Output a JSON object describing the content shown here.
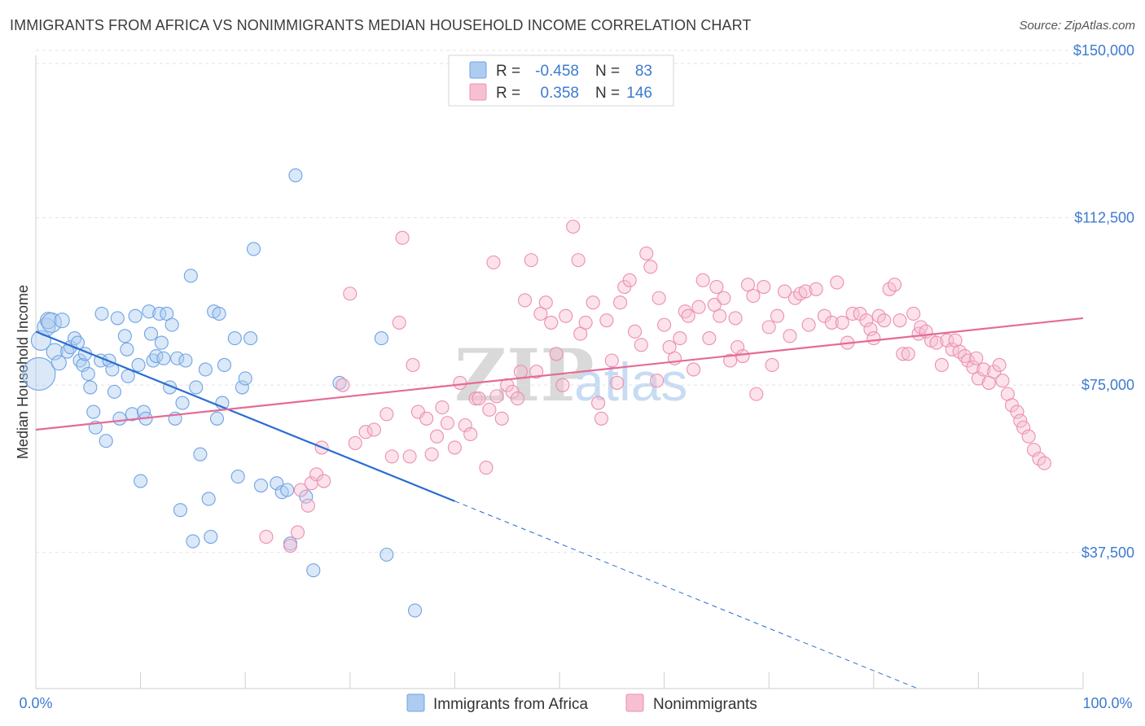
{
  "title": "IMMIGRANTS FROM AFRICA VS NONIMMIGRANTS MEDIAN HOUSEHOLD INCOME CORRELATION CHART",
  "source": "Source: ZipAtlas.com",
  "watermark": {
    "zip": "ZIP",
    "atlas": "atlas"
  },
  "chart_data": {
    "type": "scatter",
    "ylabel": "Median Household Income",
    "xlabel": "",
    "xlim": [
      0,
      100
    ],
    "ylim": [
      7000,
      154000
    ],
    "x_tick_labels": {
      "left": "0.0%",
      "right": "100.0%"
    },
    "y_ticks": [
      {
        "value": 37500,
        "label": "$37,500"
      },
      {
        "value": 75000,
        "label": "$75,000"
      },
      {
        "value": 112500,
        "label": "$112,500"
      },
      {
        "value": 150000,
        "label": "$150,000"
      }
    ],
    "grid": "horizontal dashed",
    "legend_position": "top-center",
    "stats": [
      {
        "r_label": "R =",
        "r": "-0.458",
        "n_label": "N =",
        "n": "83"
      },
      {
        "r_label": "R =",
        "r": "0.358",
        "n_label": "N =",
        "n": "146"
      }
    ],
    "series": [
      {
        "name": "Immigrants from Africa",
        "color": "#6fa3e4",
        "fill": "#aecbf0",
        "line_color": "#2a6dd0",
        "trend": {
          "x0": 0,
          "y0": 87000,
          "x1": 40,
          "y1": 49000,
          "dash_to_x": 100,
          "dash_to_y": -8000
        },
        "points": [
          [
            0.3,
            77500,
            20
          ],
          [
            0.5,
            85000,
            12
          ],
          [
            1.0,
            88000,
            11
          ],
          [
            1.2,
            89500,
            10
          ],
          [
            1.5,
            89000,
            12
          ],
          [
            1.8,
            82500,
            10
          ],
          [
            2.2,
            80000,
            9
          ],
          [
            2.5,
            89500,
            9
          ],
          [
            3.0,
            82500,
            8
          ],
          [
            3.3,
            83500,
            8
          ],
          [
            3.7,
            85500,
            8
          ],
          [
            4.0,
            84500,
            8
          ],
          [
            4.2,
            80500,
            8
          ],
          [
            4.5,
            79500,
            8
          ],
          [
            4.7,
            82000,
            8
          ],
          [
            5.0,
            77500,
            8
          ],
          [
            5.2,
            74500,
            8
          ],
          [
            5.5,
            69000,
            8
          ],
          [
            5.7,
            65500,
            8
          ],
          [
            6.2,
            80500,
            8
          ],
          [
            6.3,
            91000,
            8
          ],
          [
            6.7,
            62500,
            8
          ],
          [
            7.0,
            80500,
            8
          ],
          [
            7.3,
            78500,
            8
          ],
          [
            7.5,
            73500,
            8
          ],
          [
            7.8,
            90000,
            8
          ],
          [
            8.0,
            67500,
            8
          ],
          [
            8.5,
            86000,
            8
          ],
          [
            8.7,
            83000,
            8
          ],
          [
            8.8,
            77000,
            8
          ],
          [
            9.2,
            68500,
            8
          ],
          [
            9.5,
            90500,
            8
          ],
          [
            9.8,
            79500,
            8
          ],
          [
            10.0,
            53500,
            8
          ],
          [
            10.3,
            69000,
            8
          ],
          [
            10.5,
            67500,
            8
          ],
          [
            10.8,
            91500,
            8
          ],
          [
            11.0,
            86500,
            8
          ],
          [
            11.2,
            80500,
            8
          ],
          [
            11.5,
            81500,
            8
          ],
          [
            11.8,
            91000,
            8
          ],
          [
            12.0,
            84500,
            8
          ],
          [
            12.2,
            81000,
            8
          ],
          [
            12.5,
            91000,
            8
          ],
          [
            12.8,
            74500,
            8
          ],
          [
            13.0,
            88500,
            8
          ],
          [
            13.3,
            67500,
            8
          ],
          [
            13.5,
            81000,
            8
          ],
          [
            13.8,
            47000,
            8
          ],
          [
            14.0,
            71000,
            8
          ],
          [
            14.3,
            80500,
            8
          ],
          [
            14.8,
            99500,
            8
          ],
          [
            15.0,
            40000,
            8
          ],
          [
            15.3,
            74500,
            8
          ],
          [
            15.7,
            59500,
            8
          ],
          [
            16.2,
            78500,
            8
          ],
          [
            16.5,
            49500,
            8
          ],
          [
            16.7,
            41000,
            8
          ],
          [
            17.0,
            91500,
            8
          ],
          [
            17.3,
            67500,
            8
          ],
          [
            17.5,
            91000,
            8
          ],
          [
            17.8,
            71000,
            8
          ],
          [
            18.0,
            79500,
            8
          ],
          [
            19.0,
            85500,
            8
          ],
          [
            19.3,
            54500,
            8
          ],
          [
            19.7,
            74500,
            8
          ],
          [
            20.0,
            76500,
            8
          ],
          [
            20.5,
            85500,
            8
          ],
          [
            20.8,
            105500,
            8
          ],
          [
            21.5,
            52500,
            8
          ],
          [
            23.0,
            53000,
            8
          ],
          [
            23.5,
            51000,
            8
          ],
          [
            24.0,
            51500,
            8
          ],
          [
            24.3,
            39500,
            8
          ],
          [
            24.8,
            122000,
            8
          ],
          [
            25.8,
            50000,
            8
          ],
          [
            26.5,
            33500,
            8
          ],
          [
            29.0,
            75500,
            8
          ],
          [
            33.0,
            85500,
            8
          ],
          [
            33.5,
            37000,
            8
          ],
          [
            36.2,
            24500,
            8
          ]
        ]
      },
      {
        "name": "Nonimmigrants",
        "color": "#ec8fb0",
        "fill": "#f7bfd2",
        "line_color": "#e46b97",
        "trend": {
          "x0": 0,
          "y0": 65000,
          "x1": 100,
          "y1": 90000
        },
        "points": [
          [
            22.0,
            41000,
            8
          ],
          [
            24.3,
            39000,
            8
          ],
          [
            25.0,
            42000,
            8
          ],
          [
            25.3,
            51500,
            8
          ],
          [
            26.0,
            48000,
            8
          ],
          [
            26.3,
            53000,
            8
          ],
          [
            26.8,
            55000,
            8
          ],
          [
            27.3,
            61000,
            8
          ],
          [
            27.5,
            53500,
            8
          ],
          [
            29.3,
            75000,
            8
          ],
          [
            30.0,
            95500,
            8
          ],
          [
            30.5,
            62000,
            8
          ],
          [
            31.5,
            64500,
            8
          ],
          [
            32.3,
            65000,
            8
          ],
          [
            33.5,
            68500,
            8
          ],
          [
            34.0,
            59000,
            8
          ],
          [
            34.7,
            89000,
            8
          ],
          [
            35.0,
            108000,
            8
          ],
          [
            35.7,
            59000,
            8
          ],
          [
            36.0,
            79500,
            8
          ],
          [
            36.5,
            69000,
            8
          ],
          [
            37.3,
            67500,
            8
          ],
          [
            37.8,
            59500,
            8
          ],
          [
            38.3,
            63500,
            8
          ],
          [
            38.8,
            70000,
            8
          ],
          [
            39.3,
            66500,
            8
          ],
          [
            40.0,
            61000,
            8
          ],
          [
            40.5,
            75500,
            8
          ],
          [
            41.0,
            66000,
            8
          ],
          [
            41.5,
            64000,
            8
          ],
          [
            42.0,
            72000,
            8
          ],
          [
            42.3,
            72000,
            8
          ],
          [
            43.0,
            56500,
            8
          ],
          [
            43.3,
            69500,
            8
          ],
          [
            43.7,
            102500,
            8
          ],
          [
            44.0,
            72500,
            8
          ],
          [
            44.5,
            67500,
            8
          ],
          [
            45.0,
            75000,
            8
          ],
          [
            45.5,
            73500,
            8
          ],
          [
            46.0,
            72000,
            8
          ],
          [
            46.3,
            78000,
            8
          ],
          [
            46.7,
            94000,
            8
          ],
          [
            47.3,
            103000,
            8
          ],
          [
            47.8,
            78000,
            8
          ],
          [
            48.2,
            91000,
            8
          ],
          [
            48.7,
            93500,
            8
          ],
          [
            49.2,
            89000,
            8
          ],
          [
            49.7,
            82000,
            8
          ],
          [
            50.3,
            75000,
            8
          ],
          [
            50.6,
            90500,
            8
          ],
          [
            51.3,
            110500,
            8
          ],
          [
            51.8,
            103000,
            8
          ],
          [
            52.0,
            86500,
            8
          ],
          [
            52.5,
            89000,
            8
          ],
          [
            53.2,
            93500,
            8
          ],
          [
            53.7,
            71000,
            8
          ],
          [
            54.0,
            67500,
            8
          ],
          [
            54.5,
            89500,
            8
          ],
          [
            55.0,
            80500,
            8
          ],
          [
            55.5,
            75500,
            8
          ],
          [
            55.8,
            93500,
            8
          ],
          [
            56.2,
            97000,
            8
          ],
          [
            56.7,
            98500,
            8
          ],
          [
            57.2,
            87000,
            8
          ],
          [
            57.8,
            84000,
            8
          ],
          [
            58.3,
            104500,
            8
          ],
          [
            58.7,
            101500,
            8
          ],
          [
            59.3,
            76000,
            8
          ],
          [
            59.5,
            94500,
            8
          ],
          [
            60.0,
            88500,
            8
          ],
          [
            60.5,
            83500,
            8
          ],
          [
            61.0,
            81000,
            8
          ],
          [
            61.5,
            85500,
            8
          ],
          [
            62.0,
            91500,
            8
          ],
          [
            62.3,
            90500,
            8
          ],
          [
            62.8,
            78500,
            8
          ],
          [
            63.3,
            92500,
            8
          ],
          [
            63.7,
            98500,
            8
          ],
          [
            64.3,
            85500,
            8
          ],
          [
            64.8,
            93000,
            8
          ],
          [
            65.0,
            97000,
            8
          ],
          [
            65.3,
            90500,
            8
          ],
          [
            65.7,
            94500,
            8
          ],
          [
            66.3,
            80500,
            8
          ],
          [
            66.8,
            90000,
            8
          ],
          [
            67.0,
            83500,
            8
          ],
          [
            67.5,
            81500,
            8
          ],
          [
            68.0,
            97500,
            8
          ],
          [
            68.5,
            95000,
            8
          ],
          [
            68.8,
            73000,
            8
          ],
          [
            69.5,
            97000,
            8
          ],
          [
            70.0,
            88000,
            8
          ],
          [
            70.3,
            79500,
            8
          ],
          [
            70.8,
            90500,
            8
          ],
          [
            71.5,
            96000,
            8
          ],
          [
            72.0,
            86000,
            8
          ],
          [
            72.5,
            94500,
            8
          ],
          [
            73.0,
            95500,
            8
          ],
          [
            73.5,
            96000,
            8
          ],
          [
            73.8,
            88500,
            8
          ],
          [
            74.5,
            96500,
            8
          ],
          [
            75.3,
            90500,
            8
          ],
          [
            76.0,
            89000,
            8
          ],
          [
            76.5,
            98000,
            8
          ],
          [
            77.0,
            89000,
            8
          ],
          [
            77.5,
            84500,
            8
          ],
          [
            78.0,
            91000,
            8
          ],
          [
            78.7,
            91000,
            8
          ],
          [
            79.3,
            89500,
            8
          ],
          [
            79.7,
            87500,
            8
          ],
          [
            80.0,
            85500,
            8
          ],
          [
            80.5,
            90500,
            8
          ],
          [
            81.0,
            89500,
            8
          ],
          [
            81.5,
            96500,
            8
          ],
          [
            82.0,
            97500,
            8
          ],
          [
            82.5,
            89500,
            8
          ],
          [
            82.8,
            82000,
            8
          ],
          [
            83.3,
            82000,
            8
          ],
          [
            83.8,
            91000,
            8
          ],
          [
            84.3,
            86500,
            8
          ],
          [
            84.5,
            88000,
            8
          ],
          [
            85.0,
            87000,
            8
          ],
          [
            85.5,
            85000,
            8
          ],
          [
            86.0,
            84500,
            8
          ],
          [
            86.5,
            79500,
            8
          ],
          [
            87.0,
            85000,
            8
          ],
          [
            87.5,
            83000,
            8
          ],
          [
            87.8,
            85000,
            8
          ],
          [
            88.2,
            82500,
            8
          ],
          [
            88.7,
            81500,
            8
          ],
          [
            89.0,
            80500,
            8
          ],
          [
            89.5,
            79000,
            8
          ],
          [
            89.8,
            81000,
            8
          ],
          [
            90.0,
            76500,
            8
          ],
          [
            90.5,
            78500,
            8
          ],
          [
            91.0,
            75500,
            8
          ],
          [
            91.5,
            78000,
            8
          ],
          [
            92.0,
            79500,
            8
          ],
          [
            92.3,
            76000,
            8
          ],
          [
            92.8,
            73000,
            8
          ],
          [
            93.2,
            70500,
            8
          ],
          [
            93.7,
            69000,
            8
          ],
          [
            94.0,
            67000,
            8
          ],
          [
            94.3,
            65500,
            8
          ],
          [
            94.8,
            63500,
            8
          ],
          [
            95.3,
            60500,
            8
          ],
          [
            95.8,
            58500,
            8
          ],
          [
            96.3,
            57500,
            8
          ]
        ]
      }
    ]
  }
}
